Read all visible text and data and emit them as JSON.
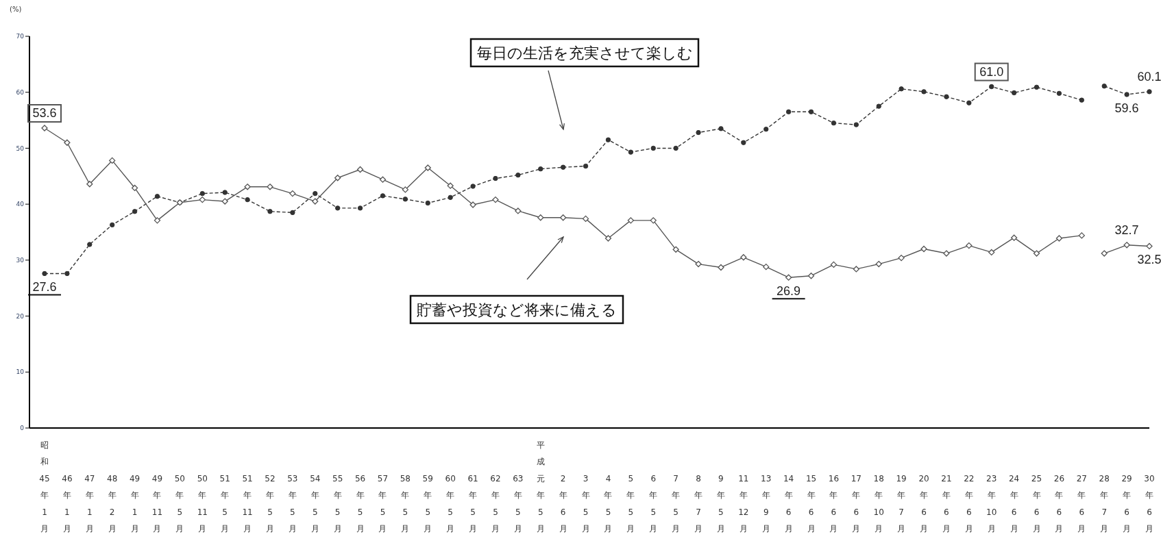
{
  "chart_data": {
    "type": "line",
    "ylabel": "(%)",
    "categories": [
      "昭和45年1月",
      "46年1月",
      "47年1月",
      "48年2月",
      "49年1月",
      "49年11月",
      "50年5月",
      "50年11月",
      "51年5月",
      "51年11月",
      "52年5月",
      "53年5月",
      "54年5月",
      "55年5月",
      "56年5月",
      "57年5月",
      "58年5月",
      "59年5月",
      "60年5月",
      "61年5月",
      "62年5月",
      "63年5月",
      "平成元年5月",
      "2年6月",
      "3年5月",
      "4年5月",
      "5年5月",
      "6年5月",
      "7年5月",
      "8年7月",
      "9年5月",
      "11年12月",
      "13年9月",
      "14年6月",
      "15年6月",
      "16年6月",
      "17年6月",
      "18年10月",
      "19年7月",
      "20年6月",
      "21年6月",
      "22年6月",
      "23年10月",
      "24年6月",
      "25年6月",
      "26年6月",
      "27年6月",
      "28年7月",
      "29年6月",
      "30年6月"
    ],
    "ylim": [
      0,
      70
    ],
    "yticks": [
      0,
      10,
      20,
      30,
      40,
      50,
      60,
      70
    ],
    "grid": false,
    "legend": false,
    "series": [
      {
        "color": "#333333",
        "marker": "circle",
        "line_style": "dashed",
        "values": [
          27.6,
          27.6,
          32.8,
          36.3,
          38.7,
          41.4,
          40.3,
          41.9,
          42.1,
          40.8,
          38.7,
          38.5,
          41.9,
          39.3,
          39.3,
          41.5,
          40.9,
          40.2,
          41.2,
          43.2,
          44.6,
          45.2,
          46.3,
          46.6,
          46.8,
          51.5,
          49.3,
          50.0,
          50.0,
          52.8,
          53.5,
          51.0,
          53.4,
          56.5,
          56.5,
          54.5,
          54.2,
          57.5,
          60.6,
          60.1,
          59.2,
          58.1,
          61.0,
          59.9,
          60.9,
          59.8,
          58.6,
          null,
          null,
          null
        ],
        "value_labels": [
          "27.6",
          null,
          null,
          null,
          null,
          null,
          null,
          null,
          null,
          null,
          null,
          null,
          null,
          null,
          null,
          null,
          null,
          null,
          null,
          null,
          null,
          null,
          null,
          null,
          null,
          null,
          null,
          null,
          null,
          null,
          null,
          null,
          null,
          null,
          null,
          null,
          null,
          null,
          null,
          null,
          null,
          null,
          "61.0",
          null,
          null,
          null,
          null,
          null,
          null,
          null
        ]
      },
      {
        "color": "#333333",
        "marker": "circle",
        "line_style": "dashed",
        "values": [
          null,
          null,
          null,
          null,
          null,
          null,
          null,
          null,
          null,
          null,
          null,
          null,
          null,
          null,
          null,
          null,
          null,
          null,
          null,
          null,
          null,
          null,
          null,
          null,
          null,
          null,
          null,
          null,
          null,
          null,
          null,
          null,
          null,
          null,
          null,
          null,
          null,
          null,
          null,
          null,
          null,
          null,
          null,
          null,
          null,
          null,
          null,
          61.1,
          59.6,
          60.1
        ],
        "value_labels": [
          null,
          null,
          null,
          null,
          null,
          null,
          null,
          null,
          null,
          null,
          null,
          null,
          null,
          null,
          null,
          null,
          null,
          null,
          null,
          null,
          null,
          null,
          null,
          null,
          null,
          null,
          null,
          null,
          null,
          null,
          null,
          null,
          null,
          null,
          null,
          null,
          null,
          null,
          null,
          null,
          null,
          null,
          null,
          null,
          null,
          null,
          null,
          null,
          "59.6",
          "60.1"
        ]
      },
      {
        "color": "#555555",
        "marker": "diamond",
        "line_style": "solid",
        "values": [
          53.6,
          51.0,
          43.6,
          47.8,
          42.9,
          37.1,
          40.3,
          40.8,
          40.5,
          43.1,
          43.1,
          41.9,
          40.5,
          44.7,
          46.2,
          44.4,
          42.6,
          46.5,
          43.3,
          39.9,
          40.8,
          38.8,
          37.6,
          37.6,
          37.4,
          33.9,
          37.1,
          37.1,
          31.9,
          29.3,
          28.7,
          30.5,
          28.8,
          26.9,
          27.2,
          29.2,
          28.4,
          29.3,
          30.4,
          32.0,
          31.2,
          32.6,
          31.4,
          34.0,
          31.2,
          33.9,
          34.4,
          null,
          null,
          null
        ],
        "value_labels": [
          "53.6",
          null,
          null,
          null,
          null,
          null,
          null,
          null,
          null,
          null,
          null,
          null,
          null,
          null,
          null,
          null,
          null,
          null,
          null,
          null,
          null,
          null,
          null,
          null,
          null,
          null,
          null,
          null,
          null,
          null,
          null,
          null,
          null,
          "26.9",
          null,
          null,
          null,
          null,
          null,
          null,
          null,
          null,
          null,
          null,
          null,
          null,
          null,
          null,
          null,
          null
        ]
      },
      {
        "color": "#555555",
        "marker": "diamond",
        "line_style": "solid",
        "values": [
          null,
          null,
          null,
          null,
          null,
          null,
          null,
          null,
          null,
          null,
          null,
          null,
          null,
          null,
          null,
          null,
          null,
          null,
          null,
          null,
          null,
          null,
          null,
          null,
          null,
          null,
          null,
          null,
          null,
          null,
          null,
          null,
          null,
          null,
          null,
          null,
          null,
          null,
          null,
          null,
          null,
          null,
          null,
          null,
          null,
          null,
          null,
          31.2,
          32.7,
          32.5
        ],
        "value_labels": [
          null,
          null,
          null,
          null,
          null,
          null,
          null,
          null,
          null,
          null,
          null,
          null,
          null,
          null,
          null,
          null,
          null,
          null,
          null,
          null,
          null,
          null,
          null,
          null,
          null,
          null,
          null,
          null,
          null,
          null,
          null,
          null,
          null,
          null,
          null,
          null,
          null,
          null,
          null,
          null,
          null,
          null,
          null,
          null,
          null,
          null,
          null,
          null,
          "32.7",
          "32.5"
        ]
      }
    ],
    "annotations": [
      "毎日の生活を充実させて楽しむ",
      "貯蓄や投資など将来に備える"
    ]
  }
}
